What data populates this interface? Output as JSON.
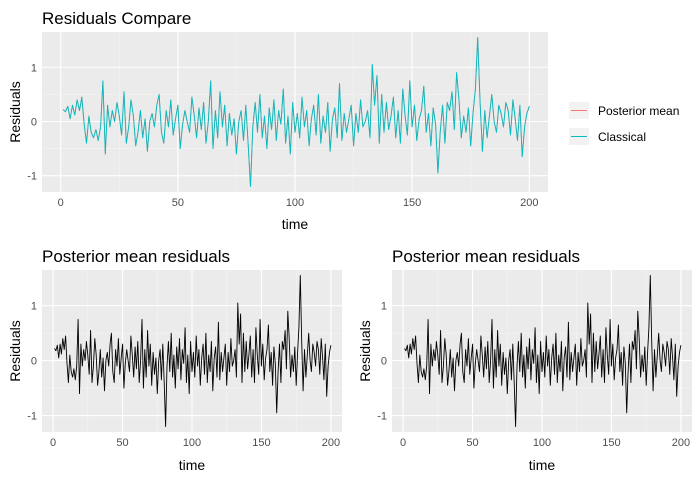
{
  "colors": {
    "panel_bg": "#ebebeb",
    "grid_major": "#ffffff",
    "grid_minor": "#f5f5f5",
    "posterior": "#f8766d",
    "classical": "#00bfc4",
    "black_line": "#000000"
  },
  "chart_data": [
    {
      "type": "line",
      "title": "Residuals Compare",
      "xlabel": "time",
      "ylabel": "Residuals",
      "xlim": [
        -8,
        208
      ],
      "ylim": [
        -1.3,
        1.65
      ],
      "xticks": [
        0,
        50,
        100,
        150,
        200
      ],
      "yticks": [
        -1,
        0,
        1
      ],
      "grid": true,
      "legend": {
        "placement": "right",
        "entries": [
          "Posterior mean",
          "Classical"
        ]
      },
      "series": [
        {
          "name": "Posterior mean",
          "color": "#f8766d",
          "values_from": "residuals"
        },
        {
          "name": "Classical",
          "color": "#00bfc4",
          "values_from": "residuals"
        }
      ]
    },
    {
      "type": "line",
      "title": "Posterior mean residuals",
      "xlabel": "time",
      "ylabel": "Residuals",
      "xlim": [
        -8,
        208
      ],
      "ylim": [
        -1.3,
        1.65
      ],
      "xticks": [
        0,
        50,
        100,
        150,
        200
      ],
      "yticks": [
        -1,
        0,
        1
      ],
      "grid": true,
      "series": [
        {
          "color": "#000000",
          "values_from": "residuals"
        }
      ]
    },
    {
      "type": "line",
      "title": "Posterior mean residuals",
      "xlabel": "time",
      "ylabel": "Residuals",
      "xlim": [
        -8,
        208
      ],
      "ylim": [
        -1.3,
        1.65
      ],
      "xticks": [
        0,
        50,
        100,
        150,
        200
      ],
      "yticks": [
        -1,
        0,
        1
      ],
      "grid": true,
      "series": [
        {
          "color": "#000000",
          "values_from": "residuals"
        }
      ]
    }
  ],
  "residuals": {
    "x_start": 1,
    "x_step": 1,
    "y": [
      0.22,
      0.18,
      0.28,
      0.05,
      0.3,
      0.12,
      0.4,
      0.2,
      0.45,
      -0.05,
      -0.4,
      0.1,
      -0.2,
      -0.3,
      -0.15,
      -0.35,
      -0.1,
      0.75,
      -0.6,
      0.3,
      -0.1,
      0.2,
      0.0,
      0.35,
      0.1,
      -0.25,
      0.55,
      -0.4,
      -0.1,
      0.4,
      0.1,
      -0.45,
      -0.2,
      0.2,
      -0.3,
      0.05,
      -0.55,
      0.0,
      0.15,
      -0.1,
      0.3,
      0.5,
      -0.2,
      -0.4,
      0.2,
      -0.1,
      0.4,
      -0.25,
      0.05,
      0.3,
      -0.5,
      -0.05,
      0.2,
      0.0,
      -0.2,
      0.45,
      0.1,
      -0.3,
      0.25,
      -0.15,
      0.35,
      -0.4,
      0.0,
      0.75,
      -0.5,
      0.2,
      -0.3,
      0.55,
      -0.1,
      0.3,
      -0.45,
      0.15,
      -0.25,
      0.05,
      -0.6,
      0.0,
      0.2,
      -0.35,
      0.3,
      -0.4,
      -1.2,
      -0.1,
      0.35,
      -0.2,
      0.5,
      -0.3,
      0.1,
      -0.5,
      0.25,
      -0.15,
      0.4,
      -0.35,
      0.2,
      -0.05,
      0.6,
      -0.4,
      0.1,
      -0.6,
      0.35,
      -0.2,
      0.15,
      -0.3,
      0.45,
      -0.1,
      0.2,
      -0.45,
      0.05,
      0.3,
      -0.25,
      0.5,
      -0.4,
      0.1,
      -0.2,
      0.35,
      -0.55,
      0.05,
      0.25,
      -0.3,
      0.7,
      -0.35,
      0.15,
      -0.2,
      0.05,
      0.3,
      -0.45,
      0.15,
      -0.2,
      0.4,
      -0.1,
      0.0,
      0.2,
      -0.3,
      1.05,
      0.3,
      0.85,
      -0.4,
      0.5,
      -0.2,
      0.35,
      -0.15,
      0.1,
      0.45,
      -0.3,
      0.2,
      -0.4,
      0.6,
      0.1,
      -0.25,
      0.75,
      -0.1,
      0.3,
      -0.35,
      0.05,
      0.2,
      0.65,
      -0.2,
      0.15,
      -0.45,
      0.25,
      -0.05,
      -0.95,
      -0.2,
      0.3,
      -0.4,
      0.35,
      0.2,
      0.55,
      -0.15,
      0.9,
      0.4,
      -0.3,
      0.1,
      -0.2,
      0.25,
      -0.45,
      0.15,
      0.6,
      1.55,
      0.35,
      -0.55,
      0.2,
      -0.3,
      0.1,
      0.5,
      0.0,
      -0.2,
      0.3,
      0.15,
      -0.1,
      0.35,
      0.2,
      -0.25,
      0.4,
      0.05,
      -0.35,
      0.3,
      -0.65,
      -0.1,
      0.15,
      0.28
    ]
  }
}
